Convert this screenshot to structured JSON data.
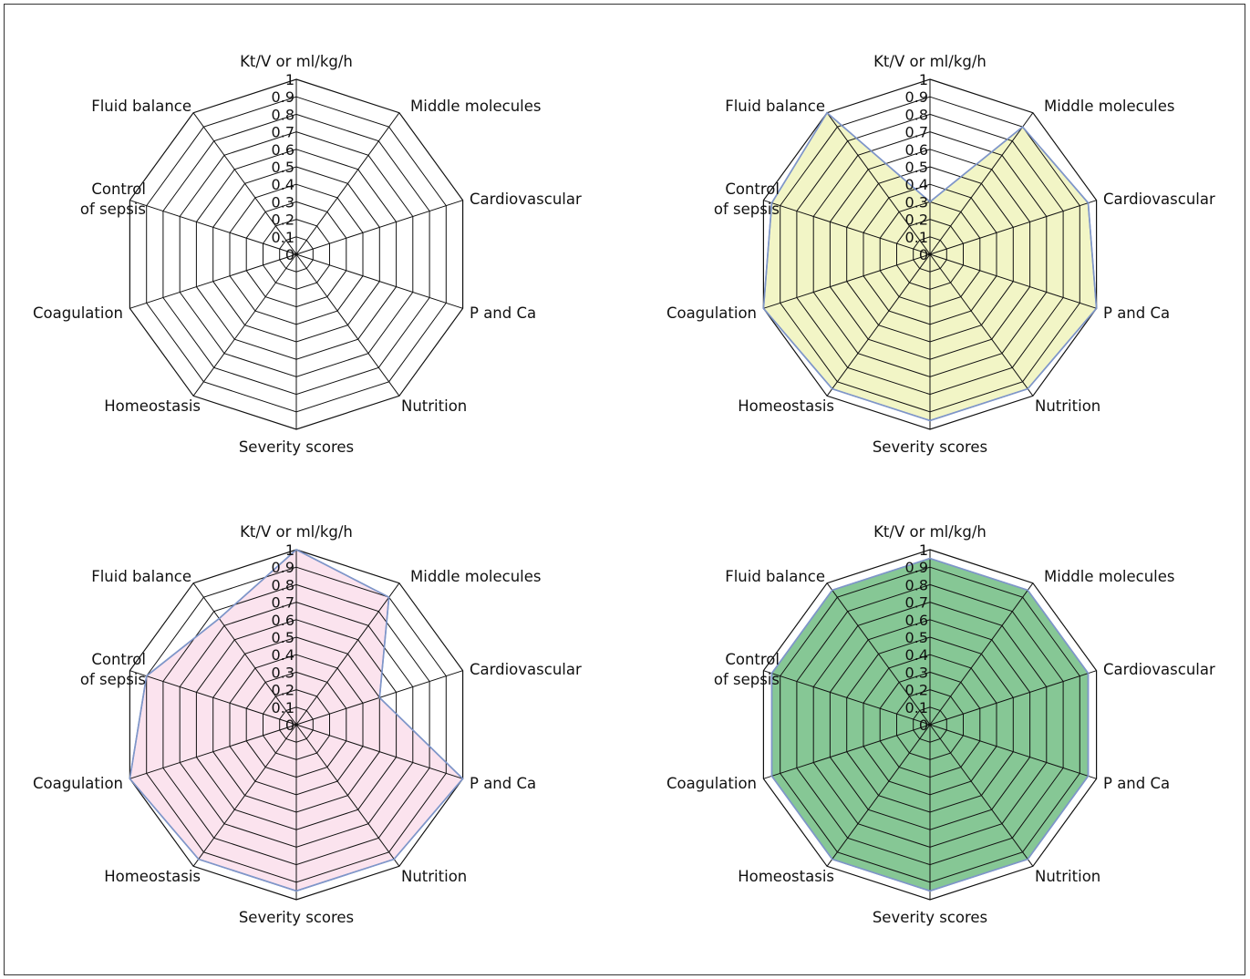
{
  "chart_data": [
    {
      "type": "radar",
      "axes": [
        "Kt/V or ml/kg/h",
        "Middle molecules",
        "Cardiovascular",
        "P and Ca",
        "Nutrition",
        "Severity scores",
        "Homeostasis",
        "Coagulation",
        "Control of sepsis",
        "Fluid balance"
      ],
      "ticks": [
        "0",
        "0.1",
        "0.2",
        "0.3",
        "0.4",
        "0.5",
        "0.6",
        "0.7",
        "0.8",
        "0.9",
        "1"
      ],
      "rlim": [
        0,
        1
      ],
      "series": [
        {
          "values": [],
          "fill_color": "",
          "line_color": ""
        }
      ]
    },
    {
      "type": "radar",
      "axes": [
        "Kt/V or ml/kg/h",
        "Middle molecules",
        "Cardiovascular",
        "P and Ca",
        "Nutrition",
        "Severity scores",
        "Homeostasis",
        "Coagulation",
        "Control of sepsis",
        "Fluid balance"
      ],
      "ticks": [
        "0",
        "0.1",
        "0.2",
        "0.3",
        "0.4",
        "0.5",
        "0.6",
        "0.7",
        "0.8",
        "0.9",
        "1"
      ],
      "rlim": [
        0,
        1
      ],
      "series": [
        {
          "values": [
            0.3,
            0.9,
            0.95,
            1.0,
            0.95,
            0.95,
            0.95,
            1.0,
            0.95,
            1.0
          ],
          "fill_color": "#f2f5c6",
          "line_color": "#7f96c9"
        }
      ]
    },
    {
      "type": "radar",
      "axes": [
        "Kt/V or ml/kg/h",
        "Middle molecules",
        "Cardiovascular",
        "P and Ca",
        "Nutrition",
        "Severity scores",
        "Homeostasis",
        "Coagulation",
        "Control of sepsis",
        "Fluid balance"
      ],
      "ticks": [
        "0",
        "0.1",
        "0.2",
        "0.3",
        "0.4",
        "0.5",
        "0.6",
        "0.7",
        "0.8",
        "0.9",
        "1"
      ],
      "rlim": [
        0,
        1
      ],
      "series": [
        {
          "values": [
            1.0,
            0.9,
            0.5,
            1.0,
            0.95,
            0.95,
            0.95,
            1.0,
            0.9,
            0.75
          ],
          "fill_color": "#fbe3ee",
          "line_color": "#7f96c9"
        }
      ]
    },
    {
      "type": "radar",
      "axes": [
        "Kt/V or ml/kg/h",
        "Middle molecules",
        "Cardiovascular",
        "P and Ca",
        "Nutrition",
        "Severity scores",
        "Homeostasis",
        "Coagulation",
        "Control of sepsis",
        "Fluid balance"
      ],
      "ticks": [
        "0",
        "0.1",
        "0.2",
        "0.3",
        "0.4",
        "0.5",
        "0.6",
        "0.7",
        "0.8",
        "0.9",
        "1"
      ],
      "rlim": [
        0,
        1
      ],
      "series": [
        {
          "values": [
            0.95,
            0.95,
            0.95,
            0.95,
            0.95,
            0.95,
            0.95,
            0.95,
            0.95,
            0.95
          ],
          "fill_color": "#86c795",
          "line_color": "#7f96c9"
        }
      ]
    }
  ]
}
